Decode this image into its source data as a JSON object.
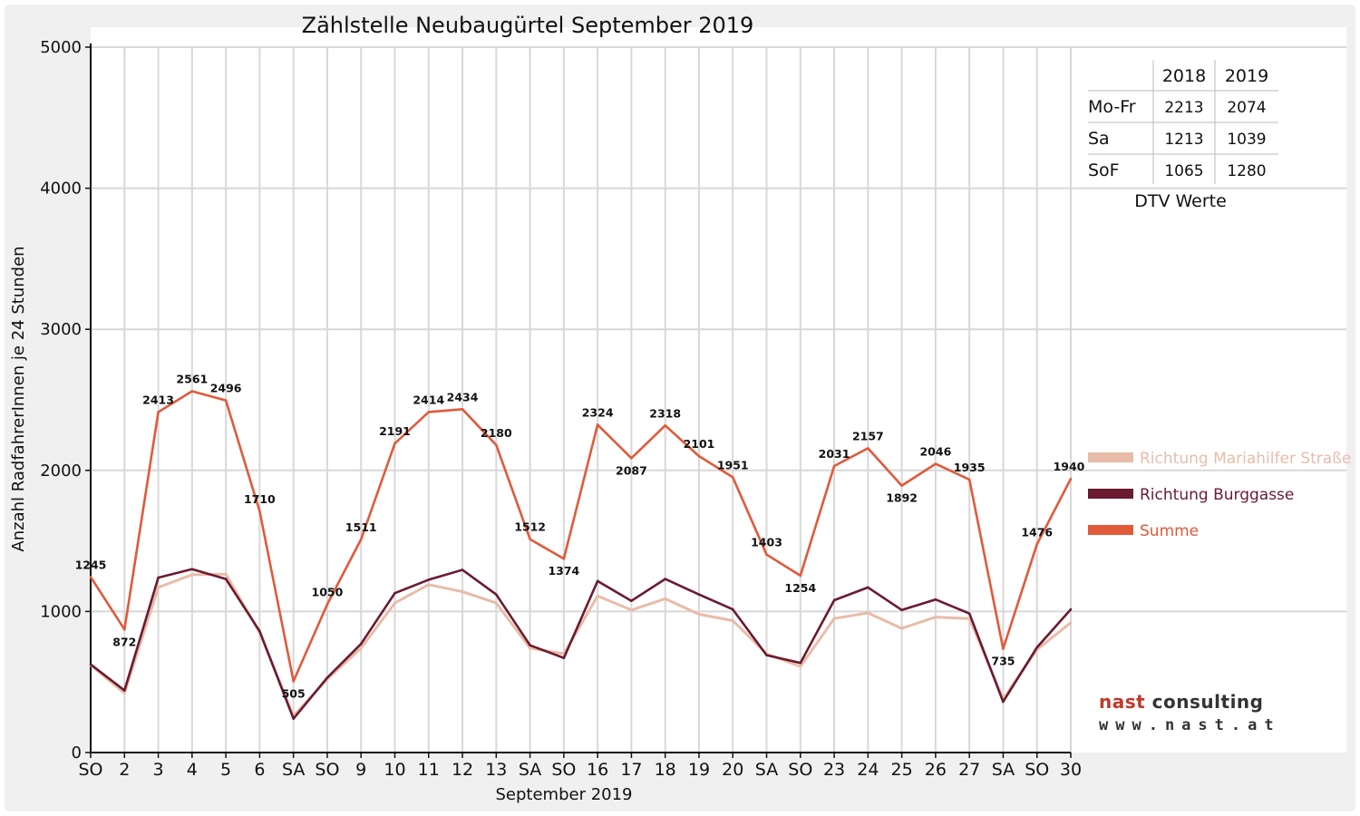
{
  "chart_data": {
    "type": "line",
    "title": "Zählstelle Neubaugürtel September 2019",
    "xlabel": "September 2019",
    "ylabel": "Anzahl RadfahrerInnen je 24 Stunden",
    "ylim": [
      0,
      5000
    ],
    "yticks": [
      "0",
      "1000",
      "2000",
      "3000",
      "4000",
      "5000"
    ],
    "grid": true,
    "legend_position": "right",
    "categories": [
      "SO",
      "2",
      "3",
      "4",
      "5",
      "6",
      "SA",
      "SO",
      "9",
      "10",
      "11",
      "12",
      "13",
      "SA",
      "SO",
      "16",
      "17",
      "18",
      "19",
      "20",
      "SA",
      "SO",
      "23",
      "24",
      "25",
      "26",
      "27",
      "SA",
      "SO",
      "30"
    ],
    "weekend_indices": [
      0,
      7,
      14,
      21,
      28
    ],
    "series": [
      {
        "name": "Richtung Mariahilfer Straße",
        "color": "#e8bca9",
        "values": [
          620,
          420,
          1170,
          1260,
          1265,
          850,
          260,
          520,
          740,
          1060,
          1190,
          1140,
          1060,
          740,
          700,
          1110,
          1010,
          1090,
          980,
          935,
          700,
          610,
          950,
          990,
          880,
          960,
          950,
          380,
          730,
          920
        ]
      },
      {
        "name": "Richtung Burggasse",
        "color": "#6b1a2f",
        "values": [
          625,
          440,
          1240,
          1300,
          1230,
          860,
          240,
          530,
          770,
          1130,
          1225,
          1295,
          1120,
          760,
          670,
          1215,
          1075,
          1230,
          1120,
          1015,
          690,
          635,
          1080,
          1170,
          1010,
          1085,
          985,
          360,
          745,
          1015
        ]
      },
      {
        "name": "Summe",
        "color": "#e05a3a",
        "values": [
          1245,
          872,
          2413,
          2561,
          2496,
          1710,
          505,
          1050,
          1511,
          2191,
          2414,
          2434,
          2180,
          1512,
          1374,
          2324,
          2087,
          2318,
          2101,
          1951,
          1403,
          1254,
          2031,
          2157,
          1892,
          2046,
          1935,
          735,
          1476,
          1940
        ],
        "labels": [
          "1245",
          "872",
          "2413",
          "2561",
          "2496",
          "1710",
          "505",
          "1050",
          "1511",
          "2191",
          "2414",
          "2434",
          "2180",
          "1512",
          "1374",
          "2324",
          "2087",
          "2318",
          "2101",
          "1951",
          "1403",
          "1254",
          "2031",
          "2157",
          "1892",
          "2046",
          "1935",
          "735",
          "1476",
          "1940"
        ]
      }
    ],
    "dtv_table": {
      "headers": [
        "",
        "2018",
        "2019"
      ],
      "rows": [
        [
          "Mo-Fr",
          "2213",
          "2074"
        ],
        [
          "Sa",
          "1213",
          "1039"
        ],
        [
          "SoF",
          "1065",
          "1280"
        ]
      ],
      "caption": "DTV Werte"
    }
  },
  "logo": {
    "brand": "nast",
    "word": "consulting",
    "url": "www.nast.at"
  },
  "colors": {
    "weekend_tick": "#ff0000",
    "grid": "#d8d8d8",
    "axis": "#111111"
  }
}
